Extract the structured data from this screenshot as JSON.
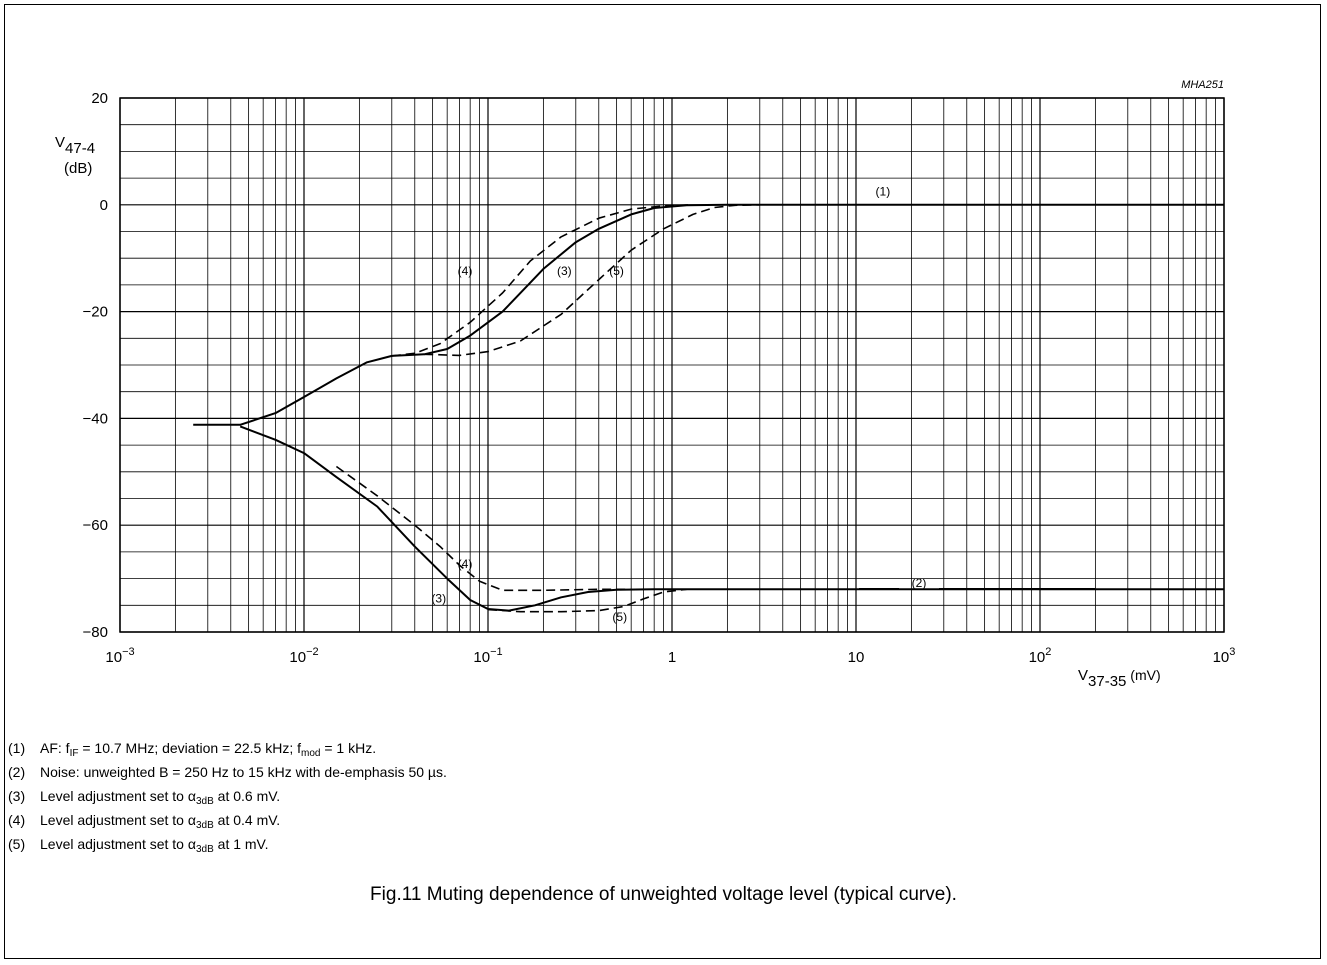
{
  "chart_data": {
    "type": "line",
    "code": "MHA251",
    "x_scale": "log",
    "xlim": [
      0.001,
      1000
    ],
    "ylim": [
      -80,
      20
    ],
    "x_ticks": [
      {
        "value": 0.001,
        "base": "10",
        "exp": "−3"
      },
      {
        "value": 0.01,
        "base": "10",
        "exp": "−2"
      },
      {
        "value": 0.1,
        "base": "10",
        "exp": "−1"
      },
      {
        "value": 1,
        "base": "1",
        "exp": ""
      },
      {
        "value": 10,
        "base": "10",
        "exp": ""
      },
      {
        "value": 100,
        "base": "10",
        "exp": "2"
      },
      {
        "value": 1000,
        "base": "10",
        "exp": "3"
      }
    ],
    "y_ticks": [
      {
        "value": 20,
        "label": "20"
      },
      {
        "value": 0,
        "label": "0"
      },
      {
        "value": -20,
        "label": "−20"
      },
      {
        "value": -40,
        "label": "−40"
      },
      {
        "value": -60,
        "label": "−60"
      },
      {
        "value": -80,
        "label": "−80"
      }
    ],
    "ylabel": {
      "main": "V",
      "sub": "47-4",
      "unit": "(dB)"
    },
    "xlabel": {
      "main": "V",
      "sub": "37-35",
      "unit": " (mV)"
    },
    "grid": true,
    "series": [
      {
        "id": "af3",
        "label": "(1)",
        "curve": "3",
        "dash": false,
        "points": [
          [
            0.0025,
            -41.2
          ],
          [
            0.0045,
            -41.2
          ],
          [
            0.007,
            -39
          ],
          [
            0.01,
            -36
          ],
          [
            0.015,
            -32.5
          ],
          [
            0.022,
            -29.5
          ],
          [
            0.03,
            -28.3
          ],
          [
            0.045,
            -28
          ],
          [
            0.06,
            -27
          ],
          [
            0.08,
            -24.5
          ],
          [
            0.12,
            -20
          ],
          [
            0.16,
            -15.5
          ],
          [
            0.2,
            -12
          ],
          [
            0.3,
            -7
          ],
          [
            0.4,
            -4.5
          ],
          [
            0.6,
            -1.8
          ],
          [
            0.8,
            -0.6
          ],
          [
            1.2,
            -0.1
          ],
          [
            2,
            0
          ],
          [
            1000,
            0
          ]
        ]
      },
      {
        "id": "af4",
        "label": "(4)",
        "curve": "4",
        "dash": true,
        "points": [
          [
            0.03,
            -28.3
          ],
          [
            0.04,
            -27.8
          ],
          [
            0.055,
            -26
          ],
          [
            0.08,
            -22
          ],
          [
            0.12,
            -16.5
          ],
          [
            0.17,
            -10.5
          ],
          [
            0.25,
            -6
          ],
          [
            0.4,
            -2.5
          ],
          [
            0.6,
            -0.8
          ],
          [
            0.9,
            -0.2
          ],
          [
            1.3,
            0
          ]
        ]
      },
      {
        "id": "af5",
        "label": "(5)",
        "curve": "5",
        "dash": true,
        "points": [
          [
            0.045,
            -28
          ],
          [
            0.07,
            -28.2
          ],
          [
            0.1,
            -27.5
          ],
          [
            0.15,
            -25.5
          ],
          [
            0.25,
            -20.5
          ],
          [
            0.4,
            -14
          ],
          [
            0.6,
            -8.5
          ],
          [
            0.9,
            -4.5
          ],
          [
            1.3,
            -1.8
          ],
          [
            1.7,
            -0.5
          ],
          [
            2.2,
            -0.1
          ],
          [
            3,
            0
          ]
        ]
      },
      {
        "id": "n3",
        "label": "(2)",
        "curve": "3",
        "dash": false,
        "points": [
          [
            0.0045,
            -41.5
          ],
          [
            0.007,
            -44
          ],
          [
            0.01,
            -46.5
          ],
          [
            0.015,
            -51
          ],
          [
            0.025,
            -56.5
          ],
          [
            0.04,
            -64
          ],
          [
            0.06,
            -70
          ],
          [
            0.08,
            -74
          ],
          [
            0.1,
            -75.7
          ],
          [
            0.13,
            -76
          ],
          [
            0.18,
            -75
          ],
          [
            0.25,
            -73.5
          ],
          [
            0.35,
            -72.5
          ],
          [
            0.5,
            -72.1
          ],
          [
            0.8,
            -72
          ],
          [
            1000,
            -72
          ]
        ]
      },
      {
        "id": "n4",
        "label": "(4)",
        "curve": "4",
        "dash": true,
        "points": [
          [
            0.015,
            -49
          ],
          [
            0.025,
            -54.5
          ],
          [
            0.04,
            -60
          ],
          [
            0.055,
            -64
          ],
          [
            0.07,
            -67.5
          ],
          [
            0.09,
            -70.5
          ],
          [
            0.12,
            -72.2
          ],
          [
            0.2,
            -72.2
          ],
          [
            0.4,
            -72
          ],
          [
            0.6,
            -72
          ]
        ]
      },
      {
        "id": "n5",
        "label": "(5)",
        "curve": "5",
        "dash": true,
        "points": [
          [
            0.1,
            -75.8
          ],
          [
            0.15,
            -76.2
          ],
          [
            0.25,
            -76.2
          ],
          [
            0.4,
            -76
          ],
          [
            0.55,
            -75.2
          ],
          [
            0.7,
            -73.8
          ],
          [
            0.9,
            -72.5
          ],
          [
            1.2,
            -72
          ]
        ]
      }
    ],
    "annotations": [
      {
        "text": "(1)",
        "x": 14,
        "y": 2.5
      },
      {
        "text": "(2)",
        "x": 22,
        "y": -70.8
      },
      {
        "text": "(3)",
        "x": 0.26,
        "y": -12.4
      },
      {
        "text": "(4)",
        "x": 0.075,
        "y": -12.4
      },
      {
        "text": "(5)",
        "x": 0.5,
        "y": -12.4
      },
      {
        "text": "(4)",
        "x": 0.075,
        "y": -67.3
      },
      {
        "text": "(3)",
        "x": 0.054,
        "y": -73.7
      },
      {
        "text": "(5)",
        "x": 0.52,
        "y": -77.2
      }
    ],
    "colors": {
      "line": "#000000",
      "grid": "#000000"
    }
  },
  "notes": [
    {
      "num": "(1)",
      "parts": [
        "AF: f",
        "IF",
        " = 10.7 MHz; deviation = 22.5 kHz; f",
        "mod",
        " = 1 kHz."
      ]
    },
    {
      "num": "(2)",
      "parts": [
        "Noise: unweighted B = 250 Hz to 15 kHz with de-emphasis 50 µs."
      ]
    },
    {
      "num": "(3)",
      "parts": [
        "Level adjustment set to α",
        "3dB",
        " at 0.6 mV."
      ]
    },
    {
      "num": "(4)",
      "parts": [
        "Level adjustment set to α",
        "3dB",
        " at 0.4 mV."
      ]
    },
    {
      "num": "(5)",
      "parts": [
        "Level adjustment set to α",
        "3dB",
        " at 1 mV."
      ]
    }
  ],
  "caption": "Fig.11  Muting dependence of unweighted voltage level (typical curve)."
}
